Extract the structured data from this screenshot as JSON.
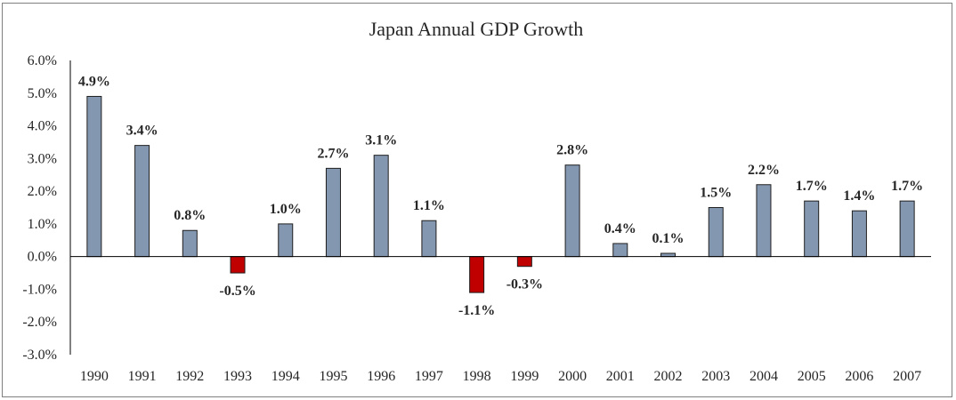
{
  "chart_data": {
    "type": "bar",
    "title": "Japan Annual GDP Growth",
    "categories": [
      "1990",
      "1991",
      "1992",
      "1993",
      "1994",
      "1995",
      "1996",
      "1997",
      "1998",
      "1999",
      "2000",
      "2001",
      "2002",
      "2003",
      "2004",
      "2005",
      "2006",
      "2007"
    ],
    "values": [
      4.9,
      3.4,
      0.8,
      -0.5,
      1.0,
      2.7,
      3.1,
      1.1,
      -1.1,
      -0.3,
      2.8,
      0.4,
      0.1,
      1.5,
      2.2,
      1.7,
      1.4,
      1.7
    ],
    "data_labels": [
      "4.9%",
      "3.4%",
      "0.8%",
      "-0.5%",
      "1.0%",
      "2.7%",
      "3.1%",
      "1.1%",
      "-1.1%",
      "-0.3%",
      "2.8%",
      "0.4%",
      "0.1%",
      "1.5%",
      "2.2%",
      "1.7%",
      "1.4%",
      "1.7%"
    ],
    "ylim": [
      -3.0,
      6.0
    ],
    "yticks": [
      6.0,
      5.0,
      4.0,
      3.0,
      2.0,
      1.0,
      0.0,
      -1.0,
      -2.0,
      -3.0
    ],
    "ytick_labels": [
      "6.0%",
      "5.0%",
      "4.0%",
      "3.0%",
      "2.0%",
      "1.0%",
      "0.0%",
      "-1.0%",
      "-2.0%",
      "-3.0%"
    ],
    "xlabel": "",
    "ylabel": "",
    "grid": false,
    "legend": "none",
    "colors": {
      "positive": "#8497b0",
      "negative": "#c00000"
    }
  }
}
